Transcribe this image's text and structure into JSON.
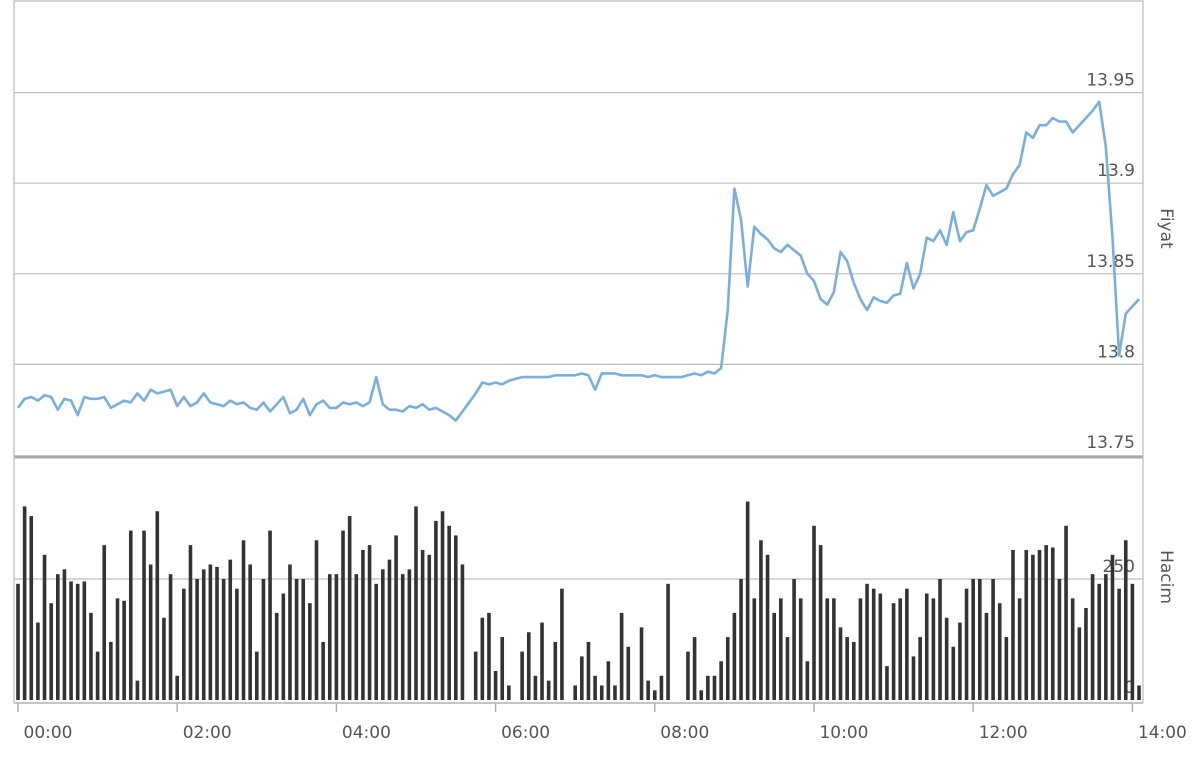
{
  "chart_data": [
    {
      "type": "line",
      "ylabel": "Fiyat",
      "color": "#7aaedc",
      "grid": true,
      "xlim": [
        0,
        848
      ],
      "ylim": [
        13.75,
        14.0
      ],
      "yticks": [
        13.75,
        13.8,
        13.85,
        13.9,
        13.95
      ],
      "x": [
        0,
        5,
        10,
        15,
        20,
        25,
        30,
        35,
        40,
        45,
        50,
        55,
        60,
        65,
        70,
        75,
        80,
        85,
        90,
        95,
        100,
        105,
        110,
        115,
        120,
        125,
        130,
        135,
        140,
        145,
        150,
        155,
        160,
        165,
        170,
        175,
        180,
        185,
        190,
        195,
        200,
        205,
        210,
        215,
        220,
        225,
        230,
        235,
        240,
        245,
        250,
        255,
        260,
        265,
        270,
        275,
        280,
        285,
        290,
        295,
        300,
        305,
        310,
        315,
        320,
        325,
        330,
        335,
        340,
        345,
        350,
        355,
        360,
        365,
        370,
        375,
        380,
        385,
        390,
        395,
        400,
        405,
        410,
        415,
        420,
        425,
        430,
        435,
        440,
        445,
        450,
        455,
        460,
        465,
        470,
        475,
        480,
        485,
        490,
        495,
        500,
        505,
        510,
        515,
        520,
        525,
        530,
        535,
        540,
        545,
        550,
        555,
        560,
        565,
        570,
        575,
        580,
        585,
        590,
        595,
        600,
        605,
        610,
        615,
        620,
        625,
        630,
        635,
        640,
        645,
        650,
        655,
        660,
        665,
        670,
        675,
        680,
        685,
        690,
        695,
        700,
        705,
        710,
        715,
        720,
        725,
        730,
        735,
        740,
        745,
        750,
        755,
        760,
        765,
        770,
        775,
        780,
        785,
        790,
        795,
        800,
        805,
        810,
        815,
        820,
        825,
        830,
        835,
        840,
        845
      ],
      "values": [
        13.776,
        13.781,
        13.782,
        13.78,
        13.783,
        13.782,
        13.775,
        13.781,
        13.78,
        13.772,
        13.782,
        13.781,
        13.781,
        13.782,
        13.776,
        13.778,
        13.78,
        13.779,
        13.784,
        13.78,
        13.786,
        13.784,
        13.785,
        13.786,
        13.777,
        13.782,
        13.777,
        13.779,
        13.784,
        13.779,
        13.778,
        13.777,
        13.78,
        13.778,
        13.779,
        13.776,
        13.775,
        13.779,
        13.774,
        13.778,
        13.782,
        13.773,
        13.775,
        13.781,
        13.772,
        13.778,
        13.78,
        13.776,
        13.776,
        13.779,
        13.778,
        13.779,
        13.777,
        13.779,
        13.793,
        13.778,
        13.775,
        13.775,
        13.774,
        13.777,
        13.776,
        13.778,
        13.775,
        13.776,
        13.774,
        13.772,
        13.769,
        13.774,
        13.779,
        13.784,
        13.79,
        13.789,
        13.79,
        13.789,
        13.791,
        13.792,
        13.793,
        13.793,
        13.793,
        13.793,
        13.793,
        13.794,
        13.794,
        13.794,
        13.794,
        13.795,
        13.794,
        13.786,
        13.795,
        13.795,
        13.795,
        13.794,
        13.794,
        13.794,
        13.794,
        13.793,
        13.794,
        13.793,
        13.793,
        13.793,
        13.793,
        13.794,
        13.795,
        13.794,
        13.796,
        13.795,
        13.798,
        13.83,
        13.897,
        13.88,
        13.843,
        13.876,
        13.872,
        13.869,
        13.864,
        13.862,
        13.866,
        13.863,
        13.86,
        13.85,
        13.846,
        13.836,
        13.833,
        13.84,
        13.862,
        13.857,
        13.845,
        13.836,
        13.83,
        13.837,
        13.835,
        13.834,
        13.838,
        13.839,
        13.856,
        13.842,
        13.85,
        13.87,
        13.868,
        13.874,
        13.866,
        13.884,
        13.868,
        13.873,
        13.874,
        13.886,
        13.899,
        13.893,
        13.895,
        13.897,
        13.905,
        13.91,
        13.928,
        13.925,
        13.932,
        13.932,
        13.936,
        13.934,
        13.934,
        13.928,
        13.932,
        13.936,
        13.94,
        13.945,
        13.92,
        13.87,
        13.805,
        13.828,
        13.832,
        13.836
      ]
    },
    {
      "type": "bar",
      "ylabel": "Hacim",
      "color": "#333333",
      "grid": true,
      "xlim": [
        0,
        848
      ],
      "ylim": [
        0,
        500
      ],
      "yticks": [
        0,
        250
      ],
      "xticks": [
        {
          "value": 0,
          "label": "00:00"
        },
        {
          "value": 120,
          "label": "02:00"
        },
        {
          "value": 240,
          "label": "04:00"
        },
        {
          "value": 360,
          "label": "06:00"
        },
        {
          "value": 480,
          "label": "08:00"
        },
        {
          "value": 600,
          "label": "10:00"
        },
        {
          "value": 720,
          "label": "12:00"
        },
        {
          "value": 840,
          "label": "14:00"
        }
      ],
      "x": [
        0,
        5,
        10,
        15,
        20,
        25,
        30,
        35,
        40,
        45,
        50,
        55,
        60,
        65,
        70,
        75,
        80,
        85,
        90,
        95,
        100,
        105,
        110,
        115,
        120,
        125,
        130,
        135,
        140,
        145,
        150,
        155,
        160,
        165,
        170,
        175,
        180,
        185,
        190,
        195,
        200,
        205,
        210,
        215,
        220,
        225,
        230,
        235,
        240,
        245,
        250,
        255,
        260,
        265,
        270,
        275,
        280,
        285,
        290,
        295,
        300,
        305,
        310,
        315,
        320,
        325,
        330,
        335,
        340,
        345,
        350,
        355,
        360,
        365,
        370,
        375,
        380,
        385,
        390,
        395,
        400,
        405,
        410,
        415,
        420,
        425,
        430,
        435,
        440,
        445,
        450,
        455,
        460,
        465,
        470,
        475,
        480,
        485,
        490,
        495,
        500,
        505,
        510,
        515,
        520,
        525,
        530,
        535,
        540,
        545,
        550,
        555,
        560,
        565,
        570,
        575,
        580,
        585,
        590,
        595,
        600,
        605,
        610,
        615,
        620,
        625,
        630,
        635,
        640,
        645,
        650,
        655,
        660,
        665,
        670,
        675,
        680,
        685,
        690,
        695,
        700,
        705,
        710,
        715,
        720,
        725,
        730,
        735,
        740,
        745,
        750,
        755,
        760,
        765,
        770,
        775,
        780,
        785,
        790,
        795,
        800,
        805,
        810,
        815,
        820,
        825,
        830,
        835,
        840,
        845
      ],
      "values": [
        240,
        400,
        380,
        160,
        300,
        200,
        260,
        270,
        245,
        240,
        245,
        180,
        100,
        320,
        120,
        210,
        205,
        350,
        40,
        350,
        280,
        390,
        170,
        260,
        50,
        230,
        320,
        250,
        270,
        280,
        275,
        250,
        290,
        230,
        330,
        280,
        100,
        250,
        350,
        180,
        220,
        280,
        250,
        250,
        200,
        330,
        120,
        260,
        260,
        350,
        380,
        260,
        310,
        320,
        240,
        270,
        290,
        340,
        260,
        270,
        400,
        310,
        300,
        370,
        390,
        360,
        340,
        280,
        0,
        100,
        170,
        180,
        60,
        130,
        30,
        0,
        100,
        140,
        50,
        160,
        40,
        120,
        230,
        0,
        30,
        90,
        120,
        50,
        30,
        80,
        30,
        180,
        110,
        0,
        150,
        40,
        20,
        50,
        240,
        0,
        0,
        100,
        130,
        20,
        50,
        50,
        80,
        130,
        180,
        250,
        410,
        210,
        330,
        300,
        180,
        210,
        130,
        250,
        210,
        80,
        360,
        320,
        210,
        210,
        150,
        130,
        120,
        210,
        240,
        230,
        220,
        70,
        200,
        210,
        230,
        90,
        130,
        220,
        210,
        250,
        170,
        110,
        160,
        230,
        250,
        250,
        180,
        250,
        200,
        130,
        310,
        210,
        310,
        300,
        310,
        320,
        315,
        250,
        360,
        210,
        150,
        190,
        260,
        240,
        260,
        300,
        230,
        330,
        240,
        30
      ]
    }
  ]
}
